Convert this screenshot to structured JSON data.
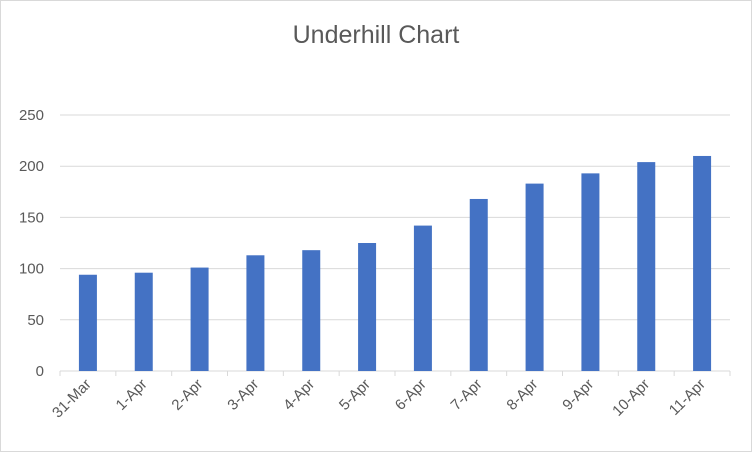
{
  "chart_data": {
    "type": "bar",
    "title": "Underhill Chart",
    "categories": [
      "31-Mar",
      "1-Apr",
      "2-Apr",
      "3-Apr",
      "4-Apr",
      "5-Apr",
      "6-Apr",
      "7-Apr",
      "8-Apr",
      "9-Apr",
      "10-Apr",
      "11-Apr"
    ],
    "series": [
      {
        "values": [
          94,
          96,
          101,
          113,
          118,
          125,
          142,
          168,
          183,
          193,
          204,
          210
        ]
      }
    ],
    "ylim": [
      0,
      250
    ],
    "yticks": [
      0,
      50,
      100,
      150,
      200,
      250
    ],
    "grid": true,
    "legend": "none",
    "colors": {
      "bar": "#4472c4",
      "grid": "#d9d9d9",
      "text": "#595959"
    }
  }
}
